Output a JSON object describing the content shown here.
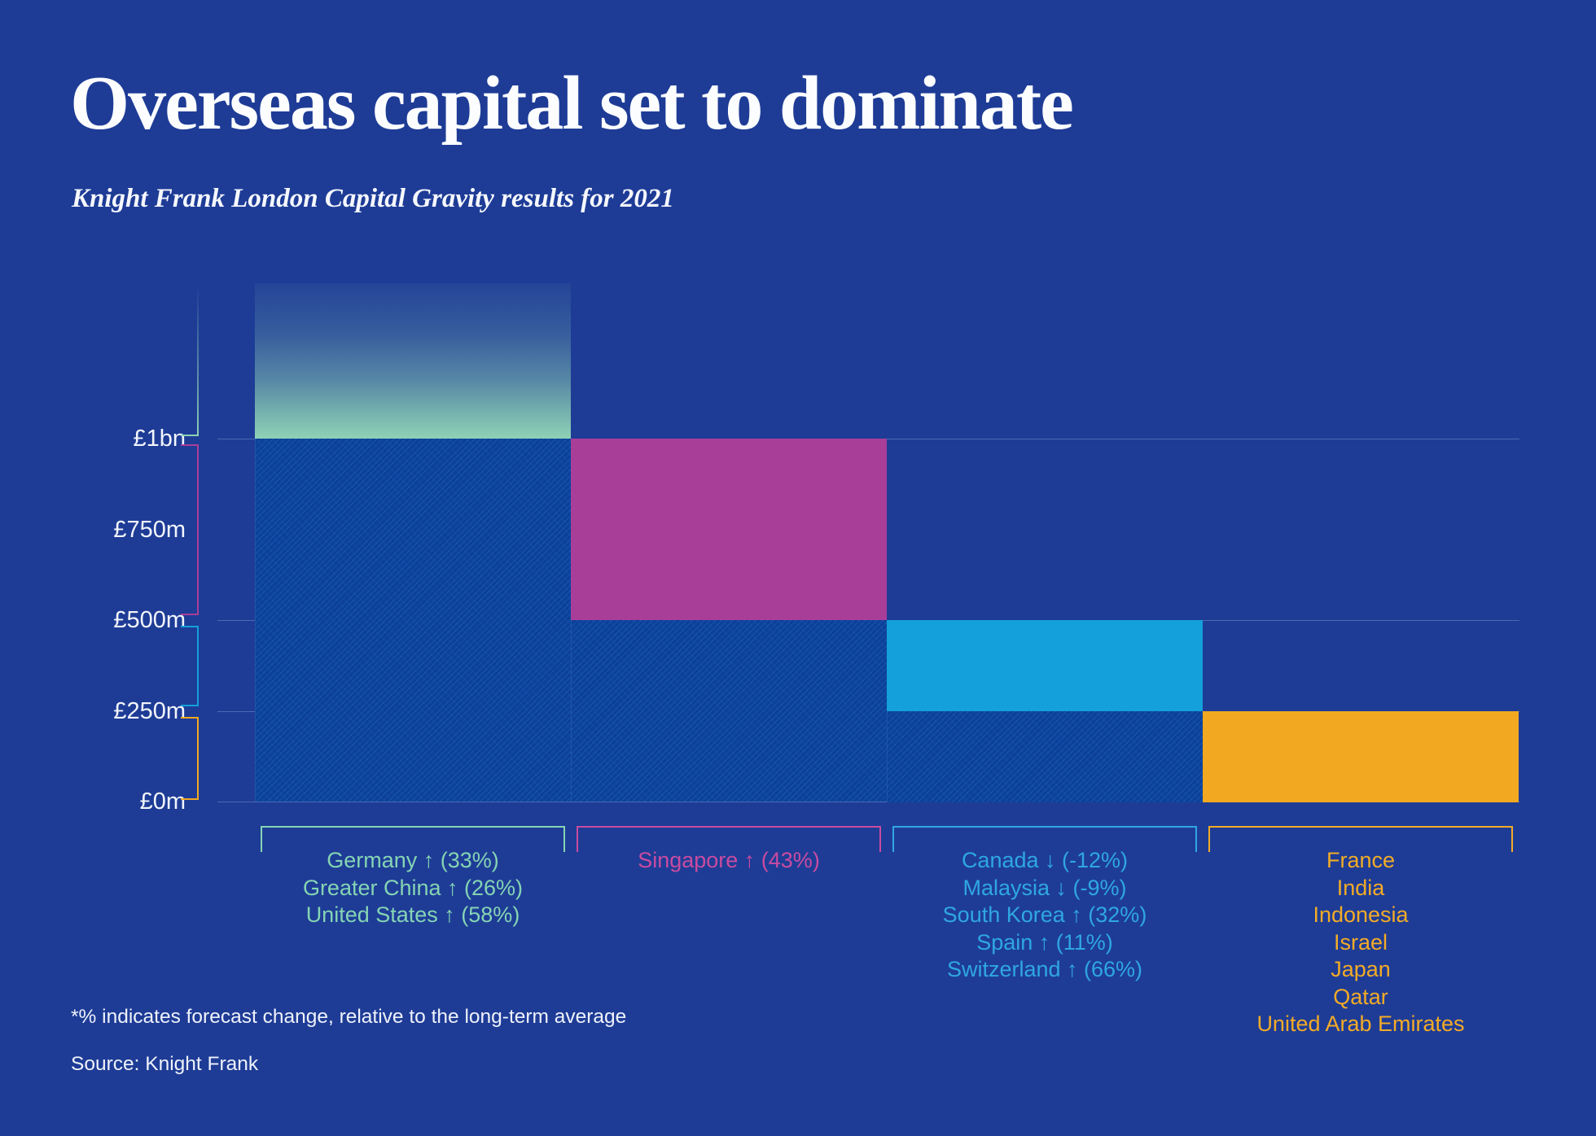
{
  "title": "Overseas capital set to dominate",
  "subtitle": "Knight Frank London Capital Gravity results for 2021",
  "footnote": "*% indicates forecast change, relative to the long-term average",
  "source": "Source: Knight Frank",
  "colors": {
    "background": "#1e3c96",
    "hatch_fill": "#0d409a",
    "gridline": "rgba(165,185,235,0.35)",
    "axis_text": "#f2f5fc",
    "teal": "#8ed1b5",
    "magenta": "#a93e98",
    "blue": "#14a0da",
    "orange": "#f2a820"
  },
  "chart_data": {
    "type": "bar",
    "variant": "stepped-descending-capital-gravity",
    "title": "Overseas capital set to dominate",
    "subtitle": "Knight Frank London Capital Gravity results for 2021",
    "unit": "GBP millions",
    "ylim": [
      0,
      1000
    ],
    "overflow_above_top": true,
    "legend_position": "below-bars",
    "grid": "horizontal-partial",
    "y_axis": {
      "ticks": [
        {
          "label": "£1bn",
          "value": 1000,
          "grid": true
        },
        {
          "label": "£750m",
          "value": 750,
          "grid": false
        },
        {
          "label": "£500m",
          "value": 500,
          "grid": true
        },
        {
          "label": "£250m",
          "value": 250,
          "grid": true
        },
        {
          "label": "£0m",
          "value": 0,
          "grid": true
        }
      ]
    },
    "groups": [
      {
        "key": "germany-greater-china-united-states",
        "bar_color": "#8ed1b5",
        "label_color": "#85d4b4",
        "segment_from": 1000,
        "segment_to": "overflow",
        "reaches": "above £1bn",
        "countries": [
          "Germany ↑ (33%)",
          "Greater China ↑ (26%)",
          "United States ↑ (58%)"
        ]
      },
      {
        "key": "singapore",
        "bar_color": "#a93e98",
        "label_color": "#c94ba0",
        "segment_from": 500,
        "segment_to": 1000,
        "reaches": "£1bn",
        "countries": [
          "Singapore ↑ (43%)"
        ]
      },
      {
        "key": "canada-malaysia-south-korea-spain-switzerland",
        "bar_color": "#14a0da",
        "label_color": "#2fa7e0",
        "segment_from": 250,
        "segment_to": 500,
        "reaches": "£500m",
        "countries": [
          "Canada ↓ (-12%)",
          "Malaysia ↓ (-9%)",
          "South Korea ↑ (32%)",
          "Spain ↑ (11%)",
          "Switzerland ↑ (66%)"
        ]
      },
      {
        "key": "france-india-indonesia-israel-japan-qatar-uae",
        "bar_color": "#f2a820",
        "label_color": "#f3ab27",
        "segment_from": 0,
        "segment_to": 250,
        "reaches": "£250m",
        "countries": [
          "France",
          "India",
          "Indonesia",
          "Israel",
          "Japan",
          "Qatar",
          "United Arab Emirates"
        ]
      }
    ]
  }
}
